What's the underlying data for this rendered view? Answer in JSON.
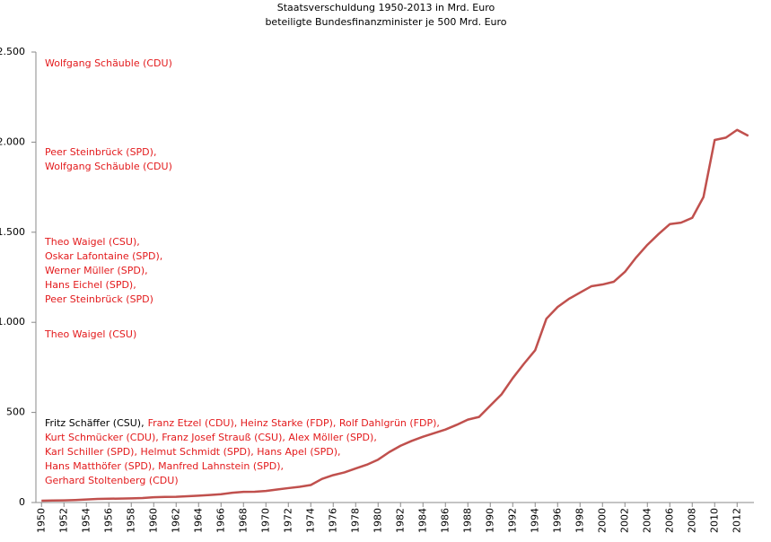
{
  "chart_data": {
    "type": "line",
    "title": "Staatsverschuldung 1950-2013 in Mrd. Euro",
    "subtitle": "beteiligte Bundesfinanzminister je 500 Mrd. Euro",
    "x": [
      1950,
      1951,
      1952,
      1953,
      1954,
      1955,
      1956,
      1957,
      1958,
      1959,
      1960,
      1961,
      1962,
      1963,
      1964,
      1965,
      1966,
      1967,
      1968,
      1969,
      1970,
      1971,
      1972,
      1973,
      1974,
      1975,
      1976,
      1977,
      1978,
      1979,
      1980,
      1981,
      1982,
      1983,
      1984,
      1985,
      1986,
      1987,
      1988,
      1989,
      1990,
      1991,
      1992,
      1993,
      1994,
      1995,
      1996,
      1997,
      1998,
      1999,
      2000,
      2001,
      2002,
      2003,
      2004,
      2005,
      2006,
      2007,
      2008,
      2009,
      2010,
      2011,
      2012,
      2013
    ],
    "series": [
      {
        "name": "Staatsverschuldung",
        "color": "#c0504d",
        "values": [
          10,
          11,
          12,
          14,
          17,
          20,
          21,
          22,
          23,
          25,
          29,
          31,
          32,
          35,
          38,
          42,
          46,
          54,
          59,
          60,
          64,
          72,
          80,
          87,
          97,
          131,
          152,
          167,
          189,
          210,
          238,
          280,
          315,
          342,
          365,
          385,
          405,
          431,
          460,
          475,
          538,
          600,
          690,
          770,
          845,
          1020,
          1085,
          1130,
          1165,
          1200,
          1210,
          1225,
          1280,
          1360,
          1430,
          1490,
          1545,
          1553,
          1580,
          1695,
          2012,
          2025,
          2068,
          2035
        ]
      }
    ],
    "xlim": [
      1949.5,
      2013.5
    ],
    "xticks": [
      1950,
      1952,
      1954,
      1956,
      1958,
      1960,
      1962,
      1964,
      1966,
      1968,
      1970,
      1972,
      1974,
      1976,
      1978,
      1980,
      1982,
      1984,
      1986,
      1988,
      1990,
      1992,
      1994,
      1996,
      1998,
      2000,
      2002,
      2004,
      2006,
      2008,
      2010,
      2012
    ],
    "ylim": [
      0,
      2500
    ],
    "yticks": [
      0,
      500,
      {
        "value": 1000,
        "label": "1.000"
      },
      {
        "value": 1500,
        "label": "1.500"
      },
      {
        "value": 2000,
        "label": "2.000"
      },
      {
        "value": 2500,
        "label": "2.500"
      }
    ],
    "grid": false,
    "annotations": [
      [
        [
          {
            "text": "Wolfgang Schäuble (CDU)",
            "color": "#e31a1c"
          }
        ]
      ],
      [
        [
          {
            "text": "Peer Steinbrück (SPD),",
            "color": "#e31a1c"
          }
        ],
        [
          {
            "text": "Wolfgang Schäuble (CDU)",
            "color": "#e31a1c"
          }
        ]
      ],
      [
        [
          {
            "text": "Theo Waigel (CSU),",
            "color": "#e31a1c"
          }
        ],
        [
          {
            "text": "Oskar Lafontaine (SPD),",
            "color": "#e31a1c"
          }
        ],
        [
          {
            "text": "Werner Müller (SPD),",
            "color": "#e31a1c"
          }
        ],
        [
          {
            "text": "Hans Eichel (SPD),",
            "color": "#e31a1c"
          }
        ],
        [
          {
            "text": "Peer Steinbrück (SPD)",
            "color": "#e31a1c"
          }
        ]
      ],
      [
        [
          {
            "text": "Theo Waigel (CSU)",
            "color": "#e31a1c"
          }
        ]
      ],
      [
        [
          {
            "text": "Fritz Schäffer (CSU),",
            "color": "#000000"
          },
          {
            "text": "Franz Etzel (CDU), Heinz Starke (FDP), Rolf Dahlgrün (FDP),",
            "color": "#e31a1c"
          }
        ],
        [
          {
            "text": "Kurt Schmücker (CDU), Franz Josef Strauß  (CSU), Alex Möller (SPD),",
            "color": "#e31a1c"
          }
        ],
        [
          {
            "text": "Karl Schiller (SPD), Helmut Schmidt (SPD), Hans Apel (SPD),",
            "color": "#e31a1c"
          }
        ],
        [
          {
            "text": "Hans Matthöfer (SPD), Manfred Lahnstein (SPD),",
            "color": "#e31a1c"
          }
        ],
        [
          {
            "text": "Gerhard Stoltenberg (CDU)",
            "color": "#e31a1c"
          }
        ]
      ]
    ]
  }
}
